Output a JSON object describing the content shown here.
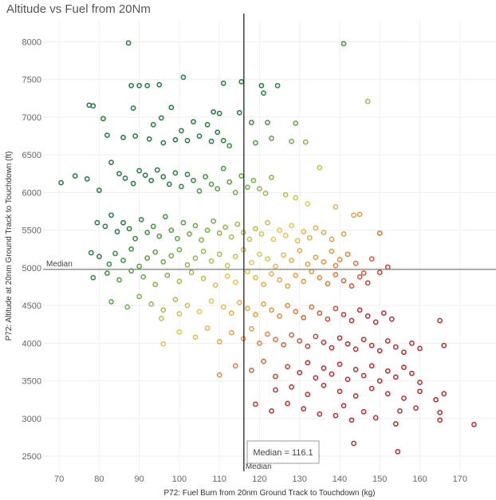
{
  "chart_data": {
    "type": "scatter",
    "title": "Altitude vs Fuel from 20Nm",
    "xlabel": "P72: Fuel Burn from 20nm Ground Track to Touchdown (kg)",
    "ylabel": "P72: Altitude at 20nm Ground Track to Touchdown (ft)",
    "xlim": [
      66,
      179
    ],
    "ylim": [
      2300,
      8280
    ],
    "x_ticks": [
      70,
      80,
      90,
      100,
      110,
      120,
      130,
      140,
      150,
      160,
      170
    ],
    "y_ticks": [
      2500,
      3000,
      3500,
      4000,
      4500,
      5000,
      5500,
      6000,
      6500,
      7000,
      7500,
      8000
    ],
    "grid": true,
    "reference_lines": {
      "x": {
        "value": 116.1,
        "label": "Median"
      },
      "y": {
        "value": 4980,
        "label": "Median"
      }
    },
    "tooltip": "Median = 116.1",
    "colors": {
      "low": "#1e7b3c",
      "mid": "#e8c64a",
      "high": "#c0282d"
    },
    "points": [
      [
        87.3,
        7985
      ],
      [
        141,
        7975
      ],
      [
        88,
        7420
      ],
      [
        90,
        7420
      ],
      [
        92,
        7420
      ],
      [
        95,
        7430
      ],
      [
        101,
        7530
      ],
      [
        111,
        7450
      ],
      [
        115.5,
        7470
      ],
      [
        120.5,
        7420
      ],
      [
        124.5,
        7420
      ],
      [
        147,
        7210
      ],
      [
        77.5,
        7160
      ],
      [
        78.5,
        7150
      ],
      [
        88.5,
        7120
      ],
      [
        98,
        7130
      ],
      [
        95.5,
        6990
      ],
      [
        81,
        6980
      ],
      [
        93.5,
        6900
      ],
      [
        103.5,
        6940
      ],
      [
        108.5,
        7070
      ],
      [
        110,
        7050
      ],
      [
        118,
        6930
      ],
      [
        122,
        6930
      ],
      [
        129,
        6920
      ],
      [
        131.5,
        6670
      ],
      [
        121,
        7320
      ],
      [
        115,
        7060
      ],
      [
        82,
        6760
      ],
      [
        86,
        6730
      ],
      [
        89,
        6750
      ],
      [
        92.5,
        6710
      ],
      [
        96,
        6660
      ],
      [
        99,
        6700
      ],
      [
        102,
        6690
      ],
      [
        105,
        6750
      ],
      [
        108,
        6680
      ],
      [
        111,
        6690
      ],
      [
        112.5,
        6620
      ],
      [
        119,
        6660
      ],
      [
        123,
        6720
      ],
      [
        128,
        6680
      ],
      [
        107,
        6900
      ],
      [
        109.5,
        6800
      ],
      [
        100.5,
        6820
      ],
      [
        70.5,
        6130
      ],
      [
        74,
        6220
      ],
      [
        77,
        6180
      ],
      [
        80,
        6030
      ],
      [
        83,
        6400
      ],
      [
        85,
        6250
      ],
      [
        86.5,
        6190
      ],
      [
        88.5,
        6120
      ],
      [
        90,
        6290
      ],
      [
        91.5,
        6230
      ],
      [
        93,
        6160
      ],
      [
        94.5,
        6300
      ],
      [
        96,
        6210
      ],
      [
        97.5,
        6110
      ],
      [
        99,
        6260
      ],
      [
        100.5,
        6080
      ],
      [
        102,
        6240
      ],
      [
        103.5,
        6160
      ],
      [
        105,
        6020
      ],
      [
        106.5,
        6210
      ],
      [
        108,
        6110
      ],
      [
        109.5,
        6050
      ],
      [
        111,
        6320
      ],
      [
        112.5,
        6140
      ],
      [
        114,
        6000
      ],
      [
        115.5,
        6220
      ],
      [
        117,
        6070
      ],
      [
        118.5,
        6160
      ],
      [
        120,
        6050
      ],
      [
        121.5,
        5990
      ],
      [
        123,
        6200
      ],
      [
        126.5,
        5970
      ],
      [
        129,
        5930
      ],
      [
        135,
        6330
      ],
      [
        145,
        5710
      ],
      [
        132,
        5850
      ],
      [
        139,
        5810
      ],
      [
        143.5,
        5700
      ],
      [
        79.5,
        5600
      ],
      [
        81.5,
        5550
      ],
      [
        83,
        5700
      ],
      [
        84.5,
        5480
      ],
      [
        86,
        5600
      ],
      [
        87.5,
        5520
      ],
      [
        89,
        5390
      ],
      [
        90.5,
        5640
      ],
      [
        92,
        5470
      ],
      [
        93.5,
        5550
      ],
      [
        95,
        5420
      ],
      [
        96.5,
        5680
      ],
      [
        98,
        5500
      ],
      [
        99.5,
        5390
      ],
      [
        101,
        5600
      ],
      [
        102.5,
        5450
      ],
      [
        104,
        5560
      ],
      [
        105.5,
        5370
      ],
      [
        107,
        5500
      ],
      [
        108.5,
        5620
      ],
      [
        110,
        5460
      ],
      [
        111.5,
        5540
      ],
      [
        113,
        5410
      ],
      [
        114.5,
        5580
      ],
      [
        116,
        5470
      ],
      [
        117.5,
        5380
      ],
      [
        119,
        5520
      ],
      [
        120.5,
        5450
      ],
      [
        122,
        5600
      ],
      [
        123.5,
        5380
      ],
      [
        125,
        5500
      ],
      [
        126.5,
        5430
      ],
      [
        128,
        5560
      ],
      [
        129.5,
        5360
      ],
      [
        131,
        5480
      ],
      [
        132.5,
        5400
      ],
      [
        134,
        5530
      ],
      [
        136,
        5470
      ],
      [
        138,
        5380
      ],
      [
        141,
        5450
      ],
      [
        150,
        5460
      ],
      [
        78,
        5200
      ],
      [
        80,
        5150
      ],
      [
        82.5,
        5050
      ],
      [
        84,
        5190
      ],
      [
        86,
        5100
      ],
      [
        88,
        5250
      ],
      [
        90,
        5020
      ],
      [
        92,
        5130
      ],
      [
        94,
        5210
      ],
      [
        96,
        5080
      ],
      [
        98,
        5160
      ],
      [
        100,
        5240
      ],
      [
        102,
        5040
      ],
      [
        104,
        5130
      ],
      [
        106,
        5220
      ],
      [
        108,
        5090
      ],
      [
        110,
        5180
      ],
      [
        112,
        5030
      ],
      [
        114,
        5150
      ],
      [
        116,
        5240
      ],
      [
        118,
        5070
      ],
      [
        120,
        5180
      ],
      [
        122,
        5120
      ],
      [
        124,
        5020
      ],
      [
        126,
        5170
      ],
      [
        128,
        5100
      ],
      [
        130,
        5230
      ],
      [
        132,
        5050
      ],
      [
        134,
        5140
      ],
      [
        136,
        5080
      ],
      [
        138,
        5220
      ],
      [
        140,
        5110
      ],
      [
        142,
        5180
      ],
      [
        144,
        5060
      ],
      [
        148,
        5120
      ],
      [
        152,
        5010
      ],
      [
        78.5,
        4870
      ],
      [
        82,
        4930
      ],
      [
        85,
        4840
      ],
      [
        88,
        4960
      ],
      [
        91,
        4880
      ],
      [
        94,
        4780
      ],
      [
        97,
        4900
      ],
      [
        100,
        4820
      ],
      [
        103,
        4940
      ],
      [
        106,
        4860
      ],
      [
        109,
        4770
      ],
      [
        112,
        4890
      ],
      [
        114,
        4810
      ],
      [
        117,
        4950
      ],
      [
        119,
        4870
      ],
      [
        121,
        4780
      ],
      [
        123,
        4920
      ],
      [
        125,
        4840
      ],
      [
        127,
        4760
      ],
      [
        129,
        4900
      ],
      [
        131,
        4820
      ],
      [
        133,
        4950
      ],
      [
        135,
        4870
      ],
      [
        137,
        4790
      ],
      [
        139,
        4910
      ],
      [
        141,
        4830
      ],
      [
        143,
        4760
      ],
      [
        145,
        4880
      ],
      [
        147,
        4800
      ],
      [
        150,
        4940
      ],
      [
        146,
        4930
      ],
      [
        139,
        5030
      ],
      [
        83,
        4550
      ],
      [
        87,
        4480
      ],
      [
        90,
        4620
      ],
      [
        93,
        4520
      ],
      [
        96,
        4440
      ],
      [
        99,
        4580
      ],
      [
        102,
        4500
      ],
      [
        105,
        4420
      ],
      [
        108,
        4560
      ],
      [
        111,
        4480
      ],
      [
        113,
        4400
      ],
      [
        115,
        4540
      ],
      [
        117,
        4460
      ],
      [
        119,
        4380
      ],
      [
        121,
        4520
      ],
      [
        123,
        4440
      ],
      [
        125,
        4360
      ],
      [
        127,
        4500
      ],
      [
        129,
        4420
      ],
      [
        131,
        4340
      ],
      [
        133,
        4480
      ],
      [
        135,
        4400
      ],
      [
        137,
        4320
      ],
      [
        139,
        4460
      ],
      [
        141,
        4380
      ],
      [
        143,
        4300
      ],
      [
        145,
        4440
      ],
      [
        147,
        4360
      ],
      [
        149,
        4280
      ],
      [
        151,
        4400
      ],
      [
        153,
        4320
      ],
      [
        95.5,
        4330
      ],
      [
        100,
        4390
      ],
      [
        96,
        3990
      ],
      [
        100,
        4150
      ],
      [
        104,
        4080
      ],
      [
        107,
        4200
      ],
      [
        110,
        4020
      ],
      [
        113,
        4140
      ],
      [
        116,
        4060
      ],
      [
        118,
        4190
      ],
      [
        120,
        4000
      ],
      [
        122,
        4120
      ],
      [
        124,
        4050
      ],
      [
        126,
        3980
      ],
      [
        128,
        4110
      ],
      [
        130,
        4030
      ],
      [
        132,
        3960
      ],
      [
        134,
        4090
      ],
      [
        136,
        4010
      ],
      [
        138,
        3940
      ],
      [
        140,
        4070
      ],
      [
        142,
        3990
      ],
      [
        144,
        3920
      ],
      [
        146,
        4050
      ],
      [
        148,
        3970
      ],
      [
        150,
        3900
      ],
      [
        152,
        4030
      ],
      [
        154,
        3950
      ],
      [
        156,
        3880
      ],
      [
        158,
        4000
      ],
      [
        160,
        3930
      ],
      [
        165,
        4300
      ],
      [
        166,
        3970
      ],
      [
        110,
        3580
      ],
      [
        114,
        3700
      ],
      [
        118,
        3640
      ],
      [
        121,
        3760
      ],
      [
        124,
        3560
      ],
      [
        127,
        3690
      ],
      [
        130,
        3610
      ],
      [
        132,
        3740
      ],
      [
        134,
        3540
      ],
      [
        136,
        3670
      ],
      [
        138,
        3590
      ],
      [
        140,
        3720
      ],
      [
        142,
        3520
      ],
      [
        144,
        3650
      ],
      [
        146,
        3570
      ],
      [
        148,
        3700
      ],
      [
        150,
        3500
      ],
      [
        152,
        3630
      ],
      [
        154,
        3550
      ],
      [
        156,
        3680
      ],
      [
        158,
        3600
      ],
      [
        160,
        3480
      ],
      [
        124,
        3380
      ],
      [
        128,
        3420
      ],
      [
        132,
        3320
      ],
      [
        136,
        3440
      ],
      [
        140,
        3360
      ],
      [
        144,
        3300
      ],
      [
        148,
        3400
      ],
      [
        152,
        3330
      ],
      [
        156,
        3270
      ],
      [
        160,
        3360
      ],
      [
        164,
        3250
      ],
      [
        166,
        3330
      ],
      [
        119,
        3190
      ],
      [
        123,
        3100
      ],
      [
        127,
        3200
      ],
      [
        131,
        3130
      ],
      [
        135,
        3060
      ],
      [
        139,
        3040
      ],
      [
        141,
        3170
      ],
      [
        143,
        2980
      ],
      [
        146,
        3090
      ],
      [
        149,
        3010
      ],
      [
        155,
        3100
      ],
      [
        159,
        3140
      ],
      [
        165,
        3080
      ],
      [
        165,
        2980
      ],
      [
        173.5,
        2920
      ],
      [
        154,
        2930
      ],
      [
        143.5,
        2670
      ],
      [
        154.5,
        2560
      ]
    ]
  }
}
